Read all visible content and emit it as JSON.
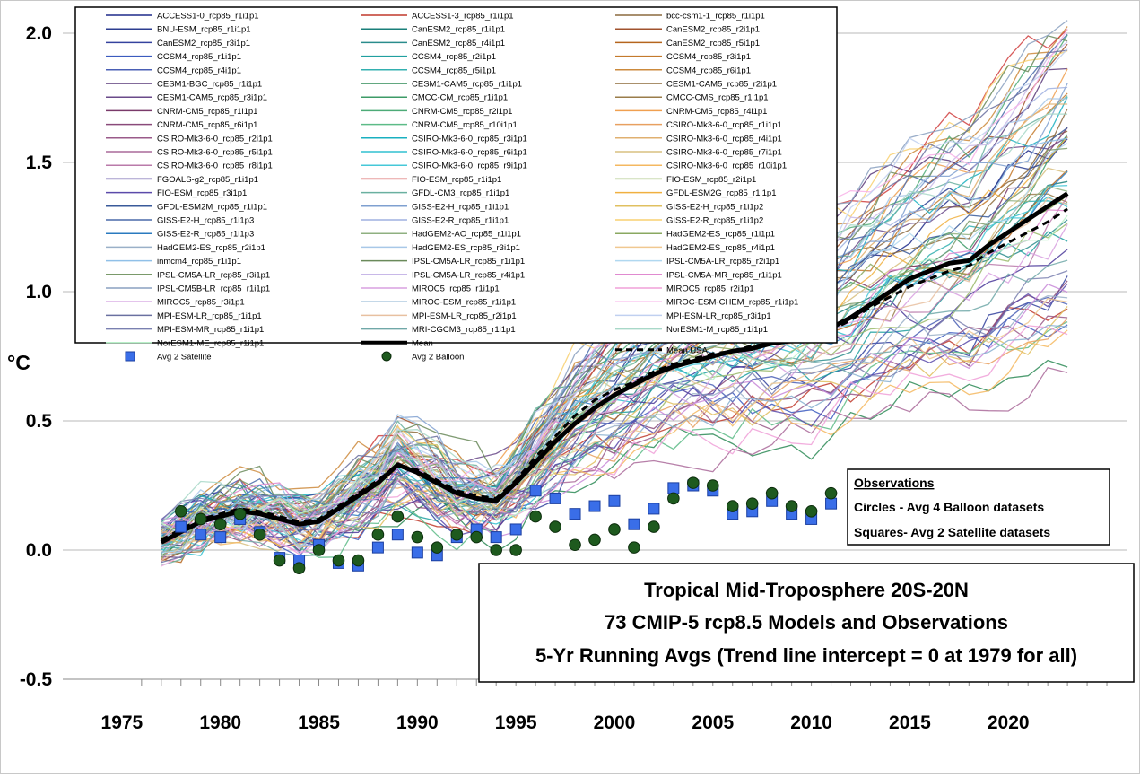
{
  "chart_data": {
    "type": "line",
    "title_lines": [
      "Tropical Mid-Troposphere 20S-20N",
      "73 CMIP-5 rcp8.5 Models and Observations",
      "5-Yr Running Avgs (Trend line intercept = 0 at 1979 for all)"
    ],
    "ylabel": "°C",
    "xlim": [
      1972,
      2026
    ],
    "ylim": [
      -0.5,
      2.05
    ],
    "x_ticks": [
      1975,
      1980,
      1985,
      1990,
      1995,
      2000,
      2005,
      2010,
      2015,
      2020
    ],
    "y_ticks": [
      -0.5,
      0.0,
      0.5,
      1.0,
      1.5,
      2.0
    ],
    "y_tick_labels": [
      "-0.5",
      "0.0",
      "0.5",
      "1.0",
      "1.5",
      "2.0"
    ],
    "grid": "horizontal",
    "legend_position": "top-left",
    "observations_box": {
      "title": "Observations",
      "lines": [
        "Circles - Avg 4 Balloon datasets",
        "Squares- Avg 2 Satellite datasets"
      ]
    },
    "model_names": [
      "ACCESS1-0_rcp85_r1i1p1",
      "ACCESS1-3_rcp85_r1i1p1",
      "bcc-csm1-1_rcp85_r1i1p1",
      "BNU-ESM_rcp85_r1i1p1",
      "CanESM2_rcp85_r1i1p1",
      "CanESM2_rcp85_r2i1p1",
      "CanESM2_rcp85_r3i1p1",
      "CanESM2_rcp85_r4i1p1",
      "CanESM2_rcp85_r5i1p1",
      "CCSM4_rcp85_r1i1p1",
      "CCSM4_rcp85_r2i1p1",
      "CCSM4_rcp85_r3i1p1",
      "CCSM4_rcp85_r4i1p1",
      "CCSM4_rcp85_r5i1p1",
      "CCSM4_rcp85_r6i1p1",
      "CESM1-BGC_rcp85_r1i1p1",
      "CESM1-CAM5_rcp85_r1i1p1",
      "CESM1-CAM5_rcp85_r2i1p1",
      "CESM1-CAM5_rcp85_r3i1p1",
      "CMCC-CM_rcp85_r1i1p1",
      "CMCC-CMS_rcp85_r1i1p1",
      "CNRM-CM5_rcp85_r1i1p1",
      "CNRM-CM5_rcp85_r2i1p1",
      "CNRM-CM5_rcp85_r4i1p1",
      "CNRM-CM5_rcp85_r6i1p1",
      "CNRM-CM5_rcp85_r10i1p1",
      "CSIRO-Mk3-6-0_rcp85_r1i1p1",
      "CSIRO-Mk3-6-0_rcp85_r2i1p1",
      "CSIRO-Mk3-6-0_rcp85_r3i1p1",
      "CSIRO-Mk3-6-0_rcp85_r4i1p1",
      "CSIRO-Mk3-6-0_rcp85_r5i1p1",
      "CSIRO-Mk3-6-0_rcp85_r6i1p1",
      "CSIRO-Mk3-6-0_rcp85_r7i1p1",
      "CSIRO-Mk3-6-0_rcp85_r8i1p1",
      "CSIRO-Mk3-6-0_rcp85_r9i1p1",
      "CSIRO-Mk3-6-0_rcp85_r10i1p1",
      "FGOALS-g2_rcp85_r1i1p1",
      "FIO-ESM_rcp85_r1i1p1",
      "FIO-ESM_rcp85_r2i1p1",
      "FIO-ESM_rcp85_r3i1p1",
      "GFDL-CM3_rcp85_r1i1p1",
      "GFDL-ESM2G_rcp85_r1i1p1",
      "GFDL-ESM2M_rcp85_r1i1p1",
      "GISS-E2-H_rcp85_r1i1p1",
      "GISS-E2-H_rcp85_r1i1p2",
      "GISS-E2-H_rcp85_r1i1p3",
      "GISS-E2-R_rcp85_r1i1p1",
      "GISS-E2-R_rcp85_r1i1p2",
      "GISS-E2-R_rcp85_r1i1p3",
      "HadGEM2-AO_rcp85_r1i1p1",
      "HadGEM2-ES_rcp85_r1i1p1",
      "HadGEM2-ES_rcp85_r2i1p1",
      "HadGEM2-ES_rcp85_r3i1p1",
      "HadGEM2-ES_rcp85_r4i1p1",
      "inmcm4_rcp85_r1i1p1",
      "IPSL-CM5A-LR_rcp85_r1i1p1",
      "IPSL-CM5A-LR_rcp85_r2i1p1",
      "IPSL-CM5A-LR_rcp85_r3i1p1",
      "IPSL-CM5A-LR_rcp85_r4i1p1",
      "IPSL-CM5A-MR_rcp85_r1i1p1",
      "IPSL-CM5B-LR_rcp85_r1i1p1",
      "MIROC5_rcp85_r1i1p1",
      "MIROC5_rcp85_r2i1p1",
      "MIROC5_rcp85_r3i1p1",
      "MIROC-ESM_rcp85_r1i1p1",
      "MIROC-ESM-CHEM_rcp85_r1i1p1",
      "MPI-ESM-LR_rcp85_r1i1p1",
      "MPI-ESM-LR_rcp85_r2i1p1",
      "MPI-ESM-LR_rcp85_r3i1p1",
      "MPI-ESM-MR_rcp85_r1i1p1",
      "MRI-CGCM3_rcp85_r1i1p1",
      "NorESM1-M_rcp85_r1i1p1",
      "NorESM1-ME_rcp85_r1i1p1"
    ],
    "model_colors": [
      "#1f2a8a",
      "#c0392b",
      "#8b6a3e",
      "#2c3e90",
      "#1a7f7a",
      "#a0522d",
      "#34429e",
      "#2a8c8c",
      "#b5651d",
      "#3b5bbf",
      "#20a0a0",
      "#c47a2c",
      "#4a5fb5",
      "#33b0b0",
      "#cc8a3c",
      "#5a3a7a",
      "#2e8b57",
      "#8e6c3a",
      "#6a4a8a",
      "#3d9b67",
      "#9a7c4a",
      "#7a3a6a",
      "#4dab77",
      "#f0a050",
      "#8a4a7a",
      "#5dbb87",
      "#e8a060",
      "#9a5a8a",
      "#1ab0c0",
      "#e0b070",
      "#aa6a9a",
      "#30c0d0",
      "#d8c080",
      "#ba7aaa",
      "#46c8d8",
      "#f4b860",
      "#4b3a9a",
      "#d04040",
      "#9aba6a",
      "#5b4aaa",
      "#6ab0a0",
      "#f0b040",
      "#3a5a9a",
      "#7fa0d0",
      "#e0c060",
      "#4a6aaa",
      "#9fb0e0",
      "#f8d070",
      "#2a7abf",
      "#8fb080",
      "#8aa860",
      "#9ab0c8",
      "#a8c8e8",
      "#f0c890",
      "#90c0e8",
      "#6a8a5a",
      "#b0d8f0",
      "#7a9a6a",
      "#c8b8e8",
      "#e08ad0",
      "#8aa0c0",
      "#d8a0e0",
      "#f0a0d8",
      "#c888d8",
      "#88b0d0",
      "#f8b0e8",
      "#6a70a0",
      "#e8c0a0",
      "#c0d0f0",
      "#7a80b0",
      "#70a8a8",
      "#a8d8c8",
      "#b8f0c8"
    ],
    "legend_special": [
      {
        "label": "Mean",
        "style": "thick-black-line"
      },
      {
        "label": "Mean USA",
        "style": "black-dashed-line"
      },
      {
        "label": "Avg 2 Satellite",
        "style": "blue-square"
      },
      {
        "label": "Avg 2 Balloon",
        "style": "green-circle"
      }
    ],
    "series_mean": {
      "name": "Mean",
      "x": [
        1977,
        1978,
        1979,
        1980,
        1981,
        1982,
        1983,
        1984,
        1985,
        1986,
        1987,
        1988,
        1989,
        1990,
        1991,
        1992,
        1993,
        1994,
        1995,
        1996,
        1997,
        1998,
        1999,
        2000,
        2001,
        2002,
        2003,
        2004,
        2005,
        2006,
        2007,
        2008,
        2009,
        2010,
        2011,
        2012,
        2013,
        2014,
        2015,
        2016,
        2017,
        2018,
        2019,
        2020,
        2021,
        2022,
        2023
      ],
      "y": [
        0.03,
        0.07,
        0.11,
        0.13,
        0.15,
        0.14,
        0.12,
        0.1,
        0.11,
        0.16,
        0.21,
        0.26,
        0.33,
        0.3,
        0.26,
        0.22,
        0.2,
        0.19,
        0.26,
        0.34,
        0.42,
        0.49,
        0.55,
        0.6,
        0.64,
        0.68,
        0.71,
        0.73,
        0.75,
        0.77,
        0.78,
        0.8,
        0.81,
        0.82,
        0.86,
        0.9,
        0.95,
        1.0,
        1.05,
        1.08,
        1.11,
        1.12,
        1.18,
        1.23,
        1.28,
        1.33,
        1.38
      ]
    },
    "series_mean_usa": {
      "name": "Mean USA",
      "x": [
        1977,
        1978,
        1979,
        1980,
        1981,
        1982,
        1983,
        1984,
        1985,
        1986,
        1987,
        1988,
        1989,
        1990,
        1991,
        1992,
        1993,
        1994,
        1995,
        1996,
        1997,
        1998,
        1999,
        2000,
        2001,
        2002,
        2003,
        2004,
        2005,
        2006,
        2007,
        2008,
        2009,
        2010,
        2011,
        2012,
        2013,
        2014,
        2015,
        2016,
        2017,
        2018,
        2019,
        2020,
        2021,
        2022,
        2023
      ],
      "y": [
        0.04,
        0.08,
        0.12,
        0.14,
        0.16,
        0.15,
        0.13,
        0.11,
        0.12,
        0.17,
        0.22,
        0.27,
        0.33,
        0.31,
        0.27,
        0.23,
        0.21,
        0.2,
        0.27,
        0.36,
        0.44,
        0.52,
        0.58,
        0.62,
        0.65,
        0.69,
        0.72,
        0.74,
        0.76,
        0.77,
        0.79,
        0.8,
        0.81,
        0.82,
        0.85,
        0.89,
        0.94,
        0.98,
        1.02,
        1.05,
        1.08,
        1.1,
        1.15,
        1.19,
        1.23,
        1.27,
        1.32
      ]
    },
    "series_satellite": {
      "name": "Avg 2 Satellite",
      "x": [
        1978,
        1979,
        1980,
        1981,
        1982,
        1983,
        1984,
        1985,
        1986,
        1987,
        1988,
        1989,
        1990,
        1991,
        1992,
        1993,
        1994,
        1995,
        1996,
        1997,
        1998,
        1999,
        2000,
        2001,
        2002,
        2003,
        2004,
        2005,
        2006,
        2007,
        2008,
        2009,
        2010,
        2011
      ],
      "y": [
        0.09,
        0.06,
        0.05,
        0.12,
        0.07,
        -0.03,
        -0.04,
        0.02,
        -0.05,
        -0.06,
        0.01,
        0.06,
        -0.01,
        -0.02,
        0.05,
        0.08,
        0.05,
        0.08,
        0.23,
        0.2,
        0.14,
        0.17,
        0.19,
        0.1,
        0.16,
        0.24,
        0.25,
        0.23,
        0.14,
        0.15,
        0.19,
        0.14,
        0.12,
        0.18
      ]
    },
    "series_balloon": {
      "name": "Avg 2 Balloon",
      "x": [
        1978,
        1979,
        1980,
        1981,
        1982,
        1983,
        1984,
        1985,
        1986,
        1987,
        1988,
        1989,
        1990,
        1991,
        1992,
        1993,
        1994,
        1995,
        1996,
        1997,
        1998,
        1999,
        2000,
        2001,
        2002,
        2003,
        2004,
        2005,
        2006,
        2007,
        2008,
        2009,
        2010,
        2011
      ],
      "y": [
        0.15,
        0.12,
        0.1,
        0.14,
        0.06,
        -0.04,
        -0.07,
        0.0,
        -0.04,
        -0.04,
        0.06,
        0.13,
        0.05,
        0.01,
        0.06,
        0.05,
        0.0,
        0.0,
        0.13,
        0.09,
        0.02,
        0.04,
        0.08,
        0.01,
        0.09,
        0.2,
        0.26,
        0.25,
        0.17,
        0.18,
        0.22,
        0.17,
        0.15,
        0.22
      ]
    }
  }
}
